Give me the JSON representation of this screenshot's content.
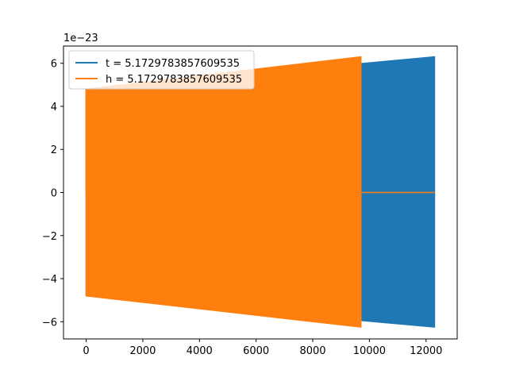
{
  "chart_data": {
    "type": "line",
    "title": "",
    "xlabel": "",
    "ylabel": "",
    "y_offset_label": "1e−23",
    "xlim": [
      -800,
      13100
    ],
    "ylim": [
      -6.8,
      6.8
    ],
    "x_ticks": [
      0,
      2000,
      4000,
      6000,
      8000,
      10000,
      12000
    ],
    "x_tick_labels": [
      "0",
      "2000",
      "4000",
      "6000",
      "8000",
      "10000",
      "12000"
    ],
    "y_ticks": [
      -6,
      -4,
      -2,
      0,
      2,
      4,
      6
    ],
    "y_tick_labels": [
      "−6",
      "−4",
      "−2",
      "0",
      "2",
      "4",
      "6"
    ],
    "grid": false,
    "legend_position": "top-left",
    "series": [
      {
        "name": "t = 5.1729783857609535",
        "color": "#1f77b4",
        "x_start": 0,
        "x_end": 12300,
        "envelope_upper_start": 4.8,
        "envelope_upper_end": 6.3,
        "envelope_lower_start": -4.8,
        "envelope_lower_end": -6.25
      },
      {
        "name": "h = 5.1729783857609535",
        "color": "#ff7f0e",
        "x_start": 0,
        "x_end": 9700,
        "envelope_upper_start": 4.8,
        "envelope_upper_end": 6.3,
        "envelope_lower_start": -4.8,
        "envelope_lower_end": -6.25,
        "tail_x_end": 12300,
        "tail_value": 0
      }
    ]
  }
}
